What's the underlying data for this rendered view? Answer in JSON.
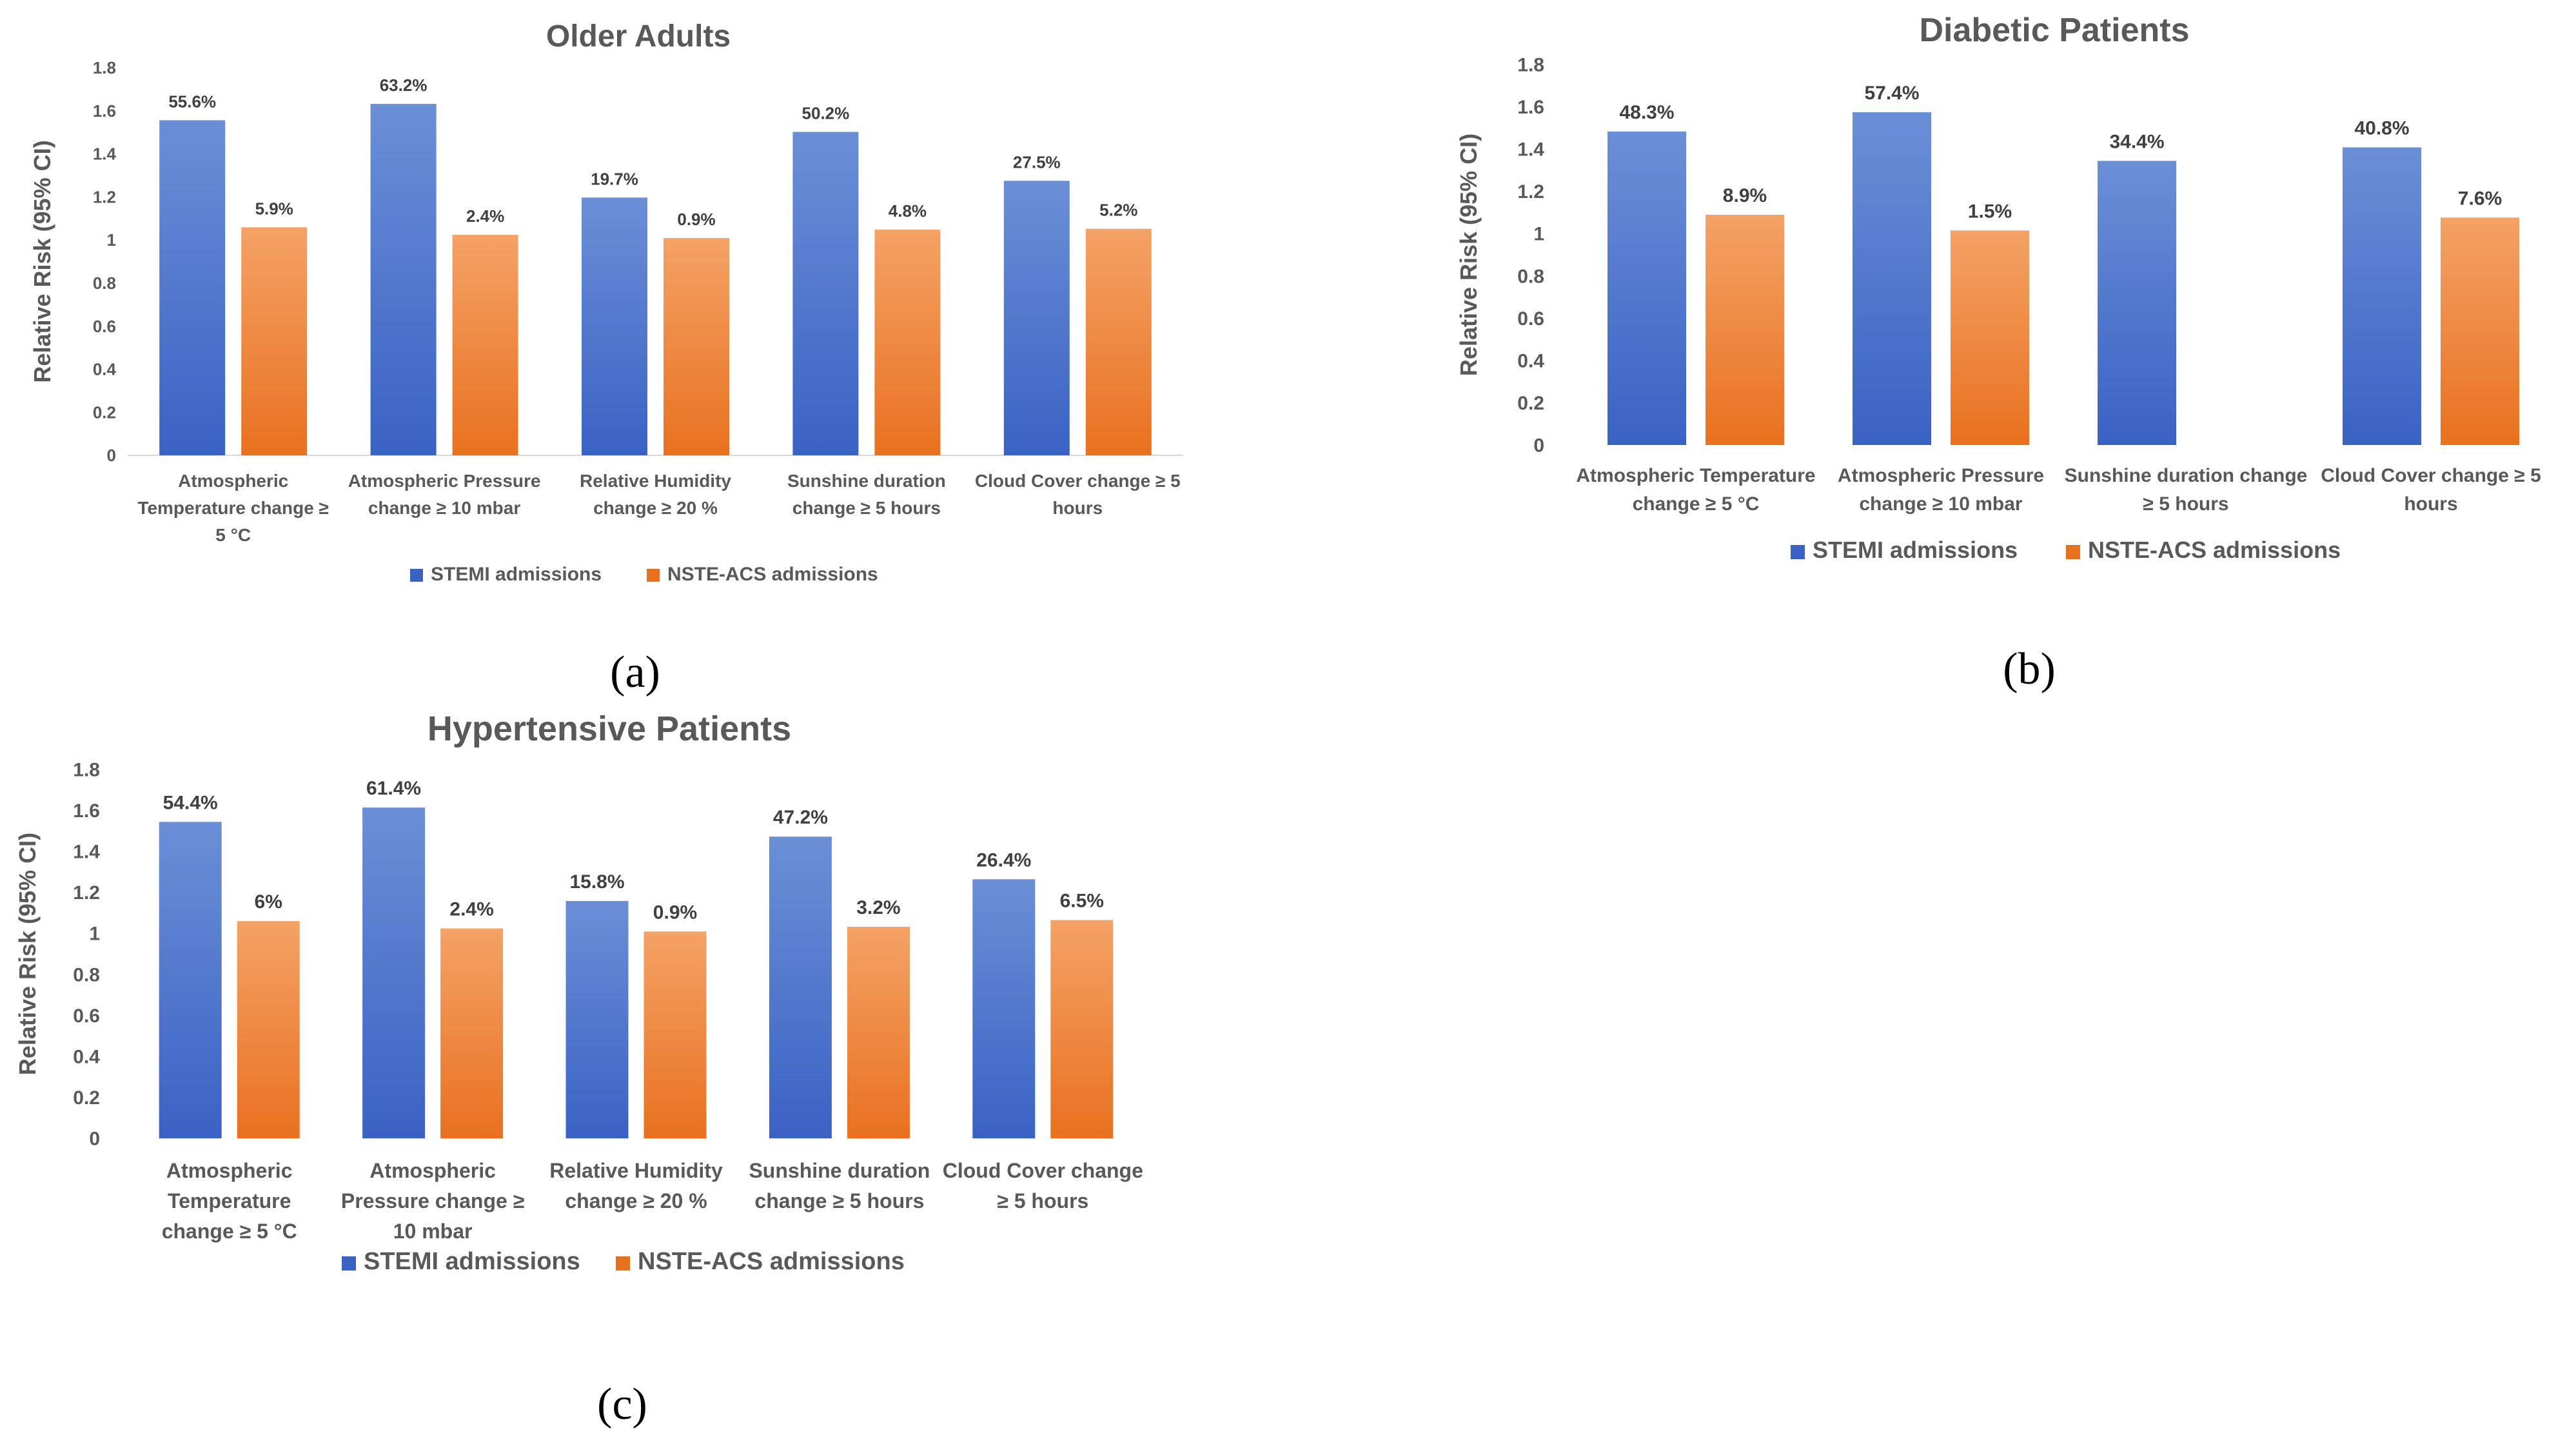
{
  "colors": {
    "stemi_top": "#6b8fd6",
    "stemi_bottom": "#3a62c4",
    "nste_top": "#f4a266",
    "nste_bottom": "#e8711f"
  },
  "chart_data": [
    {
      "id": "a",
      "type": "bar",
      "title": "Older Adults",
      "panel_label": "(a)",
      "ylabel": "Relative Risk (95% CI)",
      "ylim": [
        0,
        1.8
      ],
      "yticks": [
        "0",
        "0.2",
        "0.4",
        "0.6",
        "0.8",
        "1",
        "1.2",
        "1.4",
        "1.6",
        "1.8"
      ],
      "categories": [
        [
          "Atmospheric",
          "Temperature change ≥",
          "5 °C"
        ],
        [
          "Atmospheric Pressure",
          "change ≥ 10 mbar"
        ],
        [
          "Relative Humidity",
          "change ≥ 20 %"
        ],
        [
          "Sunshine duration",
          "change ≥ 5 hours"
        ],
        [
          "Cloud Cover change ≥ 5",
          "hours"
        ]
      ],
      "series": [
        {
          "name": "STEMI admissions",
          "values": [
            1.556,
            1.632,
            1.197,
            1.502,
            1.275
          ],
          "labels": [
            "55.6%",
            "63.2%",
            "19.7%",
            "50.2%",
            "27.5%"
          ]
        },
        {
          "name": "NSTE-ACS admissions",
          "values": [
            1.059,
            1.024,
            1.009,
            1.048,
            1.052
          ],
          "labels": [
            "5.9%",
            "2.4%",
            "0.9%",
            "4.8%",
            "5.2%"
          ]
        }
      ]
    },
    {
      "id": "b",
      "type": "bar",
      "title": "Diabetic Patients",
      "panel_label": "(b)",
      "ylabel": "Relative Risk (95% CI)",
      "ylim": [
        0,
        1.8
      ],
      "yticks": [
        "0",
        "0.2",
        "0.4",
        "0.6",
        "0.8",
        "1",
        "1.2",
        "1.4",
        "1.6",
        "1.8"
      ],
      "categories": [
        [
          "Atmospheric Temperature",
          "change ≥ 5 °C"
        ],
        [
          "Atmospheric Pressure",
          "change ≥ 10 mbar"
        ],
        [
          "Sunshine duration change",
          "≥ 5 hours"
        ],
        [
          "Cloud Cover change ≥ 5",
          "hours"
        ]
      ],
      "series": [
        {
          "name": "STEMI admissions",
          "values": [
            1.483,
            1.574,
            1.344,
            1.408
          ],
          "labels": [
            "48.3%",
            "57.4%",
            "34.4%",
            "40.8%"
          ]
        },
        {
          "name": "NSTE-ACS admissions",
          "values": [
            1.089,
            1.015,
            null,
            1.076
          ],
          "labels": [
            "8.9%",
            "1.5%",
            "",
            "7.6%"
          ]
        }
      ]
    },
    {
      "id": "c",
      "type": "bar",
      "title": "Hypertensive Patients",
      "panel_label": "(c)",
      "ylabel": "Relative Risk (95% CI)",
      "ylim": [
        0,
        1.8
      ],
      "yticks": [
        "0",
        "0.2",
        "0.4",
        "0.6",
        "0.8",
        "1",
        "1.2",
        "1.4",
        "1.6",
        "1.8"
      ],
      "categories": [
        [
          "Atmospheric",
          "Temperature",
          "change ≥ 5 °C"
        ],
        [
          "Atmospheric",
          "Pressure change ≥",
          "10 mbar"
        ],
        [
          "Relative Humidity",
          "change ≥ 20 %"
        ],
        [
          "Sunshine duration",
          "change ≥ 5 hours"
        ],
        [
          "Cloud Cover change",
          "≥ 5 hours"
        ]
      ],
      "series": [
        {
          "name": "STEMI admissions",
          "values": [
            1.544,
            1.614,
            1.158,
            1.472,
            1.264
          ],
          "labels": [
            "54.4%",
            "61.4%",
            "15.8%",
            "47.2%",
            "26.4%"
          ]
        },
        {
          "name": "NSTE-ACS admissions",
          "values": [
            1.06,
            1.024,
            1.009,
            1.032,
            1.065
          ],
          "labels": [
            "6%",
            "2.4%",
            "0.9%",
            "3.2%",
            "6.5%"
          ]
        }
      ]
    }
  ]
}
